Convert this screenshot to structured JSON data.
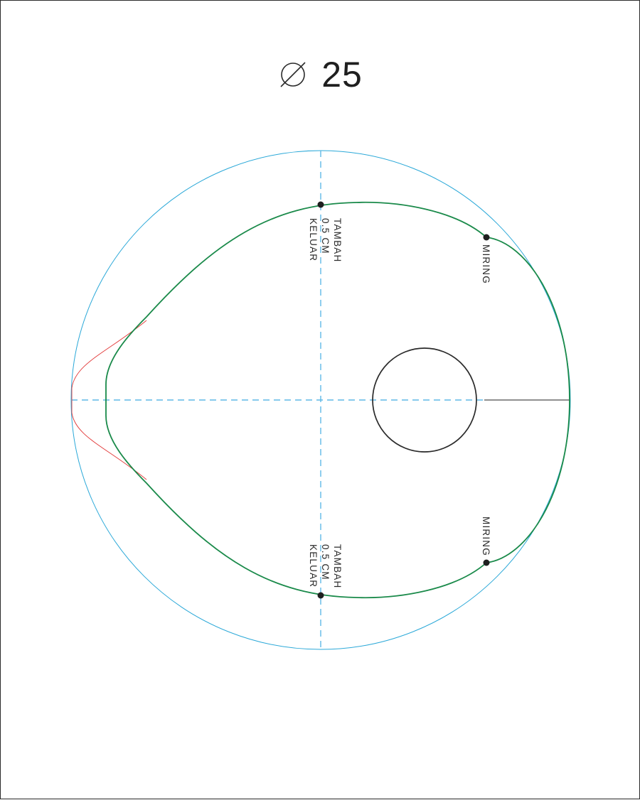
{
  "title": {
    "symbol": "⌀",
    "value": "25"
  },
  "colors": {
    "guide_circle": "#2aa8d8",
    "axis_dash": "#5fb8e6",
    "pattern_outline": "#1a8a4a",
    "alt_outline": "#e23a3a",
    "hole": "#2a2a2a",
    "text": "#2a2a2a"
  },
  "annotations": {
    "top_left": {
      "line1": "TAMBAH",
      "line2": "0.5 CM",
      "line3": "KELUAR"
    },
    "bottom_left": {
      "line1": "TAMBAH",
      "line2": "0.5 CM",
      "line3": "KELUAR"
    },
    "top_right": {
      "text": "MIRING"
    },
    "bottom_right": {
      "text": "MIRING"
    }
  }
}
